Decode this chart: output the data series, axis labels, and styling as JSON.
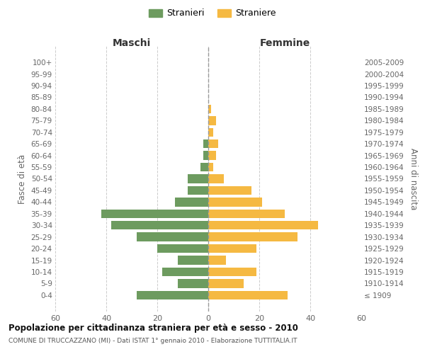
{
  "age_groups": [
    "100+",
    "95-99",
    "90-94",
    "85-89",
    "80-84",
    "75-79",
    "70-74",
    "65-69",
    "60-64",
    "55-59",
    "50-54",
    "45-49",
    "40-44",
    "35-39",
    "30-34",
    "25-29",
    "20-24",
    "15-19",
    "10-14",
    "5-9",
    "0-4"
  ],
  "birth_years": [
    "≤ 1909",
    "1910-1914",
    "1915-1919",
    "1920-1924",
    "1925-1929",
    "1930-1934",
    "1935-1939",
    "1940-1944",
    "1945-1949",
    "1950-1954",
    "1955-1959",
    "1960-1964",
    "1965-1969",
    "1970-1974",
    "1975-1979",
    "1980-1984",
    "1985-1989",
    "1990-1994",
    "1995-1999",
    "2000-2004",
    "2005-2009"
  ],
  "maschi": [
    0,
    0,
    0,
    0,
    0,
    0,
    0,
    2,
    2,
    3,
    8,
    8,
    13,
    42,
    38,
    28,
    20,
    12,
    18,
    12,
    28
  ],
  "femmine": [
    0,
    0,
    0,
    0,
    1,
    3,
    2,
    4,
    3,
    2,
    6,
    17,
    21,
    30,
    43,
    35,
    19,
    7,
    19,
    14,
    31
  ],
  "color_maschi": "#6d9b5f",
  "color_femmine": "#f5b942",
  "background_color": "#ffffff",
  "grid_color": "#cccccc",
  "title": "Popolazione per cittadinanza straniera per età e sesso - 2010",
  "subtitle": "COMUNE DI TRUCCAZZANO (MI) - Dati ISTAT 1° gennaio 2010 - Elaborazione TUTTITALIA.IT",
  "ylabel_left": "Fasce di età",
  "ylabel_right": "Anni di nascita",
  "xlabel_maschi": "Maschi",
  "xlabel_femmine": "Femmine",
  "legend_maschi": "Stranieri",
  "legend_femmine": "Straniere",
  "xlim": 60
}
